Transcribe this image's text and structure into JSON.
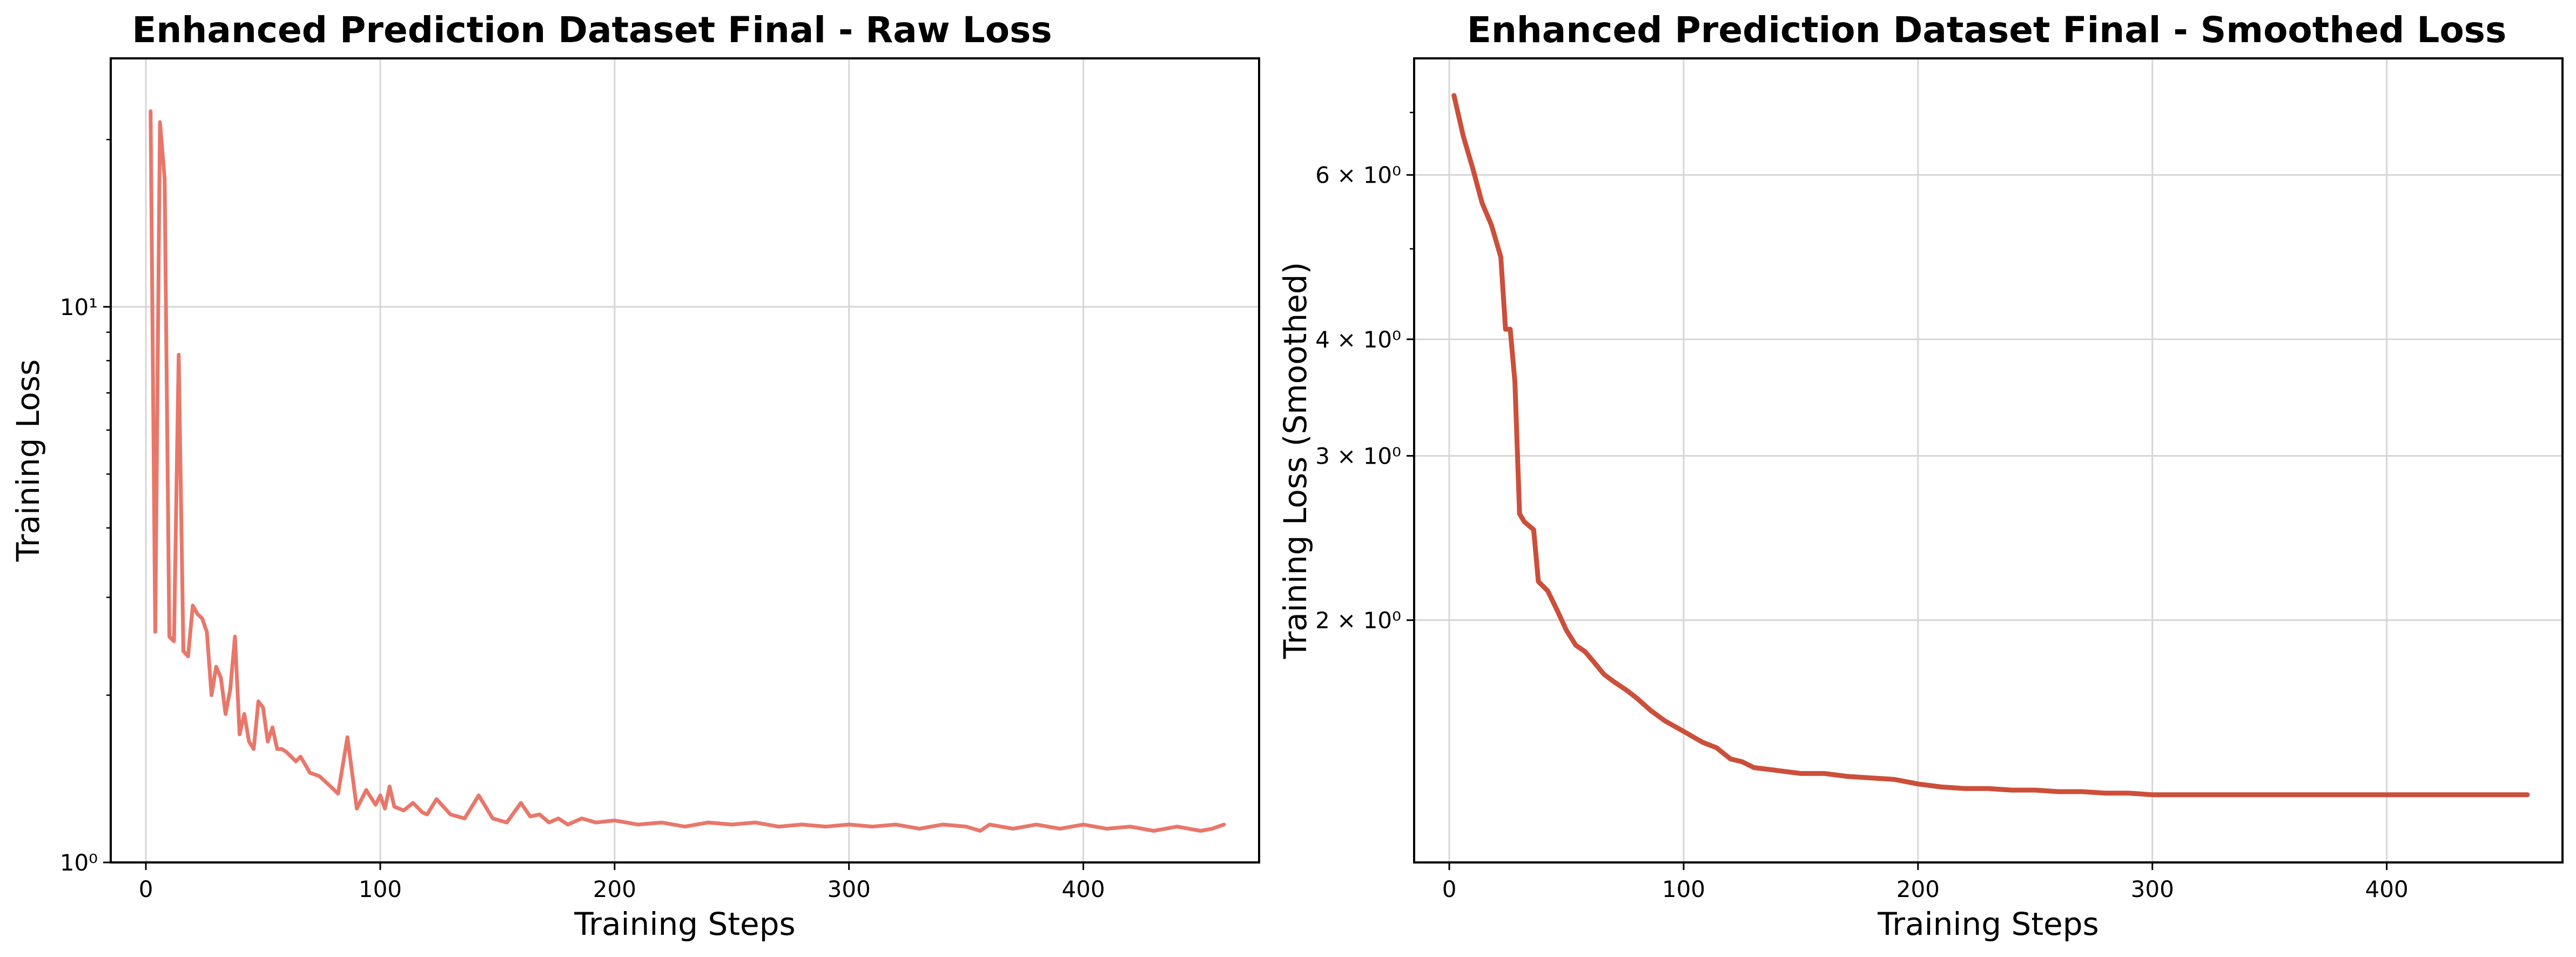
{
  "chart_data": [
    {
      "type": "line",
      "title": "Enhanced Prediction Dataset Final - Raw Loss",
      "xlabel": "Training Steps",
      "ylabel": "Training Loss",
      "xlim": [
        -15,
        475
      ],
      "ylim": [
        1.0,
        28
      ],
      "yscale": "log",
      "grid": true,
      "color": "#e8776a",
      "x_ticks": [
        0,
        100,
        200,
        300,
        400
      ],
      "y_ticks": [
        {
          "value": 1,
          "label": "10⁰"
        },
        {
          "value": 10,
          "label": "10¹"
        }
      ],
      "series": [
        {
          "x": [
            2,
            4,
            6,
            8,
            10,
            12,
            14,
            16,
            18,
            20,
            22,
            24,
            26,
            28,
            30,
            32,
            34,
            36,
            38,
            40,
            42,
            44,
            46,
            48,
            50,
            52,
            54,
            56,
            58,
            60,
            62,
            64,
            66,
            68,
            70,
            74,
            78,
            82,
            86,
            90,
            94,
            98,
            100,
            102,
            104,
            106,
            110,
            114,
            118,
            120,
            124,
            130,
            136,
            142,
            148,
            154,
            160,
            164,
            168,
            172,
            176,
            180,
            186,
            192,
            200,
            210,
            220,
            230,
            240,
            250,
            260,
            270,
            280,
            290,
            300,
            310,
            320,
            330,
            340,
            350,
            356,
            360,
            370,
            380,
            390,
            400,
            410,
            420,
            430,
            440,
            450,
            455,
            460
          ],
          "y": [
            22.5,
            2.6,
            21.5,
            17.0,
            2.55,
            2.5,
            8.2,
            2.4,
            2.35,
            2.9,
            2.8,
            2.75,
            2.6,
            2.0,
            2.25,
            2.15,
            1.85,
            2.05,
            2.55,
            1.7,
            1.85,
            1.65,
            1.6,
            1.95,
            1.9,
            1.65,
            1.75,
            1.6,
            1.6,
            1.58,
            1.55,
            1.52,
            1.55,
            1.5,
            1.45,
            1.43,
            1.38,
            1.33,
            1.68,
            1.25,
            1.35,
            1.27,
            1.32,
            1.25,
            1.37,
            1.26,
            1.24,
            1.28,
            1.23,
            1.22,
            1.3,
            1.22,
            1.2,
            1.32,
            1.2,
            1.18,
            1.28,
            1.21,
            1.22,
            1.18,
            1.2,
            1.17,
            1.2,
            1.18,
            1.19,
            1.17,
            1.18,
            1.16,
            1.18,
            1.17,
            1.18,
            1.16,
            1.17,
            1.16,
            1.17,
            1.16,
            1.17,
            1.15,
            1.17,
            1.16,
            1.14,
            1.17,
            1.15,
            1.17,
            1.15,
            1.17,
            1.15,
            1.16,
            1.14,
            1.16,
            1.14,
            1.15,
            1.17
          ]
        }
      ]
    },
    {
      "type": "line",
      "title": "Enhanced Prediction Dataset Final - Smoothed Loss",
      "xlabel": "Training Steps",
      "ylabel": "Training Loss (Smoothed)",
      "xlim": [
        -15,
        475
      ],
      "ylim": [
        1.1,
        8.0
      ],
      "yscale": "log",
      "grid": true,
      "color": "#cc4f3a",
      "x_ticks": [
        0,
        100,
        200,
        300,
        400
      ],
      "y_ticks": [
        {
          "value": 2,
          "label": "2 × 10⁰"
        },
        {
          "value": 3,
          "label": "3 × 10⁰"
        },
        {
          "value": 4,
          "label": "4 × 10⁰"
        },
        {
          "value": 6,
          "label": "6 × 10⁰"
        }
      ],
      "series": [
        {
          "x": [
            2,
            6,
            10,
            14,
            18,
            22,
            24,
            26,
            28,
            30,
            32,
            36,
            38,
            42,
            46,
            50,
            54,
            58,
            62,
            66,
            70,
            76,
            80,
            86,
            92,
            100,
            108,
            114,
            120,
            125,
            130,
            140,
            150,
            160,
            170,
            180,
            190,
            200,
            210,
            220,
            230,
            240,
            250,
            260,
            270,
            280,
            290,
            300,
            320,
            340,
            360,
            380,
            400,
            420,
            440,
            460
          ],
          "y": [
            7.3,
            6.6,
            6.1,
            5.6,
            5.3,
            4.9,
            4.1,
            4.1,
            3.6,
            2.6,
            2.55,
            2.5,
            2.2,
            2.15,
            2.05,
            1.95,
            1.88,
            1.85,
            1.8,
            1.75,
            1.72,
            1.68,
            1.65,
            1.6,
            1.56,
            1.52,
            1.48,
            1.46,
            1.42,
            1.41,
            1.39,
            1.38,
            1.37,
            1.37,
            1.36,
            1.355,
            1.35,
            1.335,
            1.325,
            1.32,
            1.32,
            1.315,
            1.315,
            1.31,
            1.31,
            1.305,
            1.305,
            1.3,
            1.3,
            1.3,
            1.3,
            1.3,
            1.3,
            1.3,
            1.3,
            1.3
          ]
        }
      ]
    }
  ]
}
